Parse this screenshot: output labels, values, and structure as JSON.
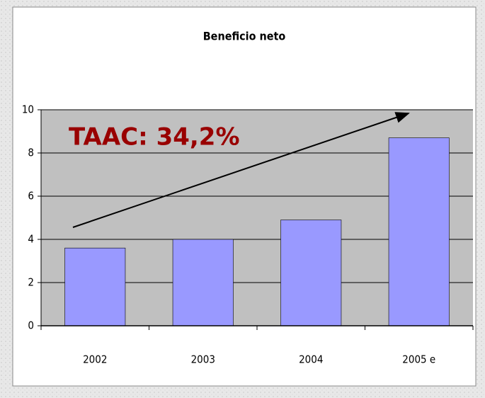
{
  "chart_data": {
    "type": "bar",
    "title": "Beneficio neto",
    "categories": [
      "2002",
      "2003",
      "2004",
      "2005 e"
    ],
    "values": [
      3.6,
      4.0,
      4.9,
      8.7
    ],
    "color": "#9999ff",
    "ylim": [
      0,
      10
    ],
    "yticks": [
      0,
      2,
      4,
      6,
      8,
      10
    ],
    "grid": true,
    "annotation": "TAAC: 34,2%"
  }
}
